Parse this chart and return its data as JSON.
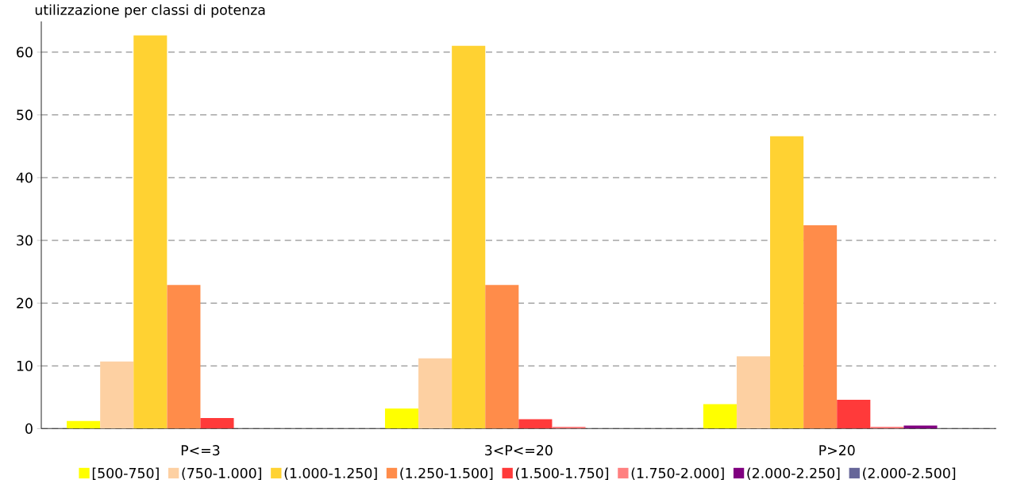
{
  "chart_data": {
    "type": "bar",
    "title": "utilizzazione per classi di potenza",
    "categories": [
      "P<=3",
      "3<P<=20",
      "P>20"
    ],
    "series": [
      {
        "name": "[500-750]",
        "color": "#ffff00",
        "values": [
          1.2,
          3.2,
          3.9
        ]
      },
      {
        "name": "(750-1.000]",
        "color": "#fdd0a2",
        "values": [
          10.7,
          11.2,
          11.5
        ]
      },
      {
        "name": "(1.000-1.250]",
        "color": "#ffd232",
        "values": [
          62.7,
          61.0,
          46.6
        ]
      },
      {
        "name": "(1.250-1.500]",
        "color": "#ff8c4a",
        "values": [
          22.9,
          22.9,
          32.4
        ]
      },
      {
        "name": "(1.500-1.750]",
        "color": "#ff3a3a",
        "values": [
          1.7,
          1.5,
          4.6
        ]
      },
      {
        "name": "(1.750-2.000]",
        "color": "#ff8080",
        "values": [
          0,
          0.3,
          0.3
        ]
      },
      {
        "name": "(2.000-2.250]",
        "color": "#800080",
        "values": [
          0,
          0,
          0.5
        ]
      },
      {
        "name": "(2.000-2.500]",
        "color": "#666699",
        "values": [
          0,
          0,
          0
        ]
      }
    ],
    "ylim": [
      0,
      64.9
    ],
    "yticks": [
      0,
      10,
      20,
      30,
      40,
      50,
      60
    ],
    "grid": "y",
    "legend": "bottom"
  }
}
